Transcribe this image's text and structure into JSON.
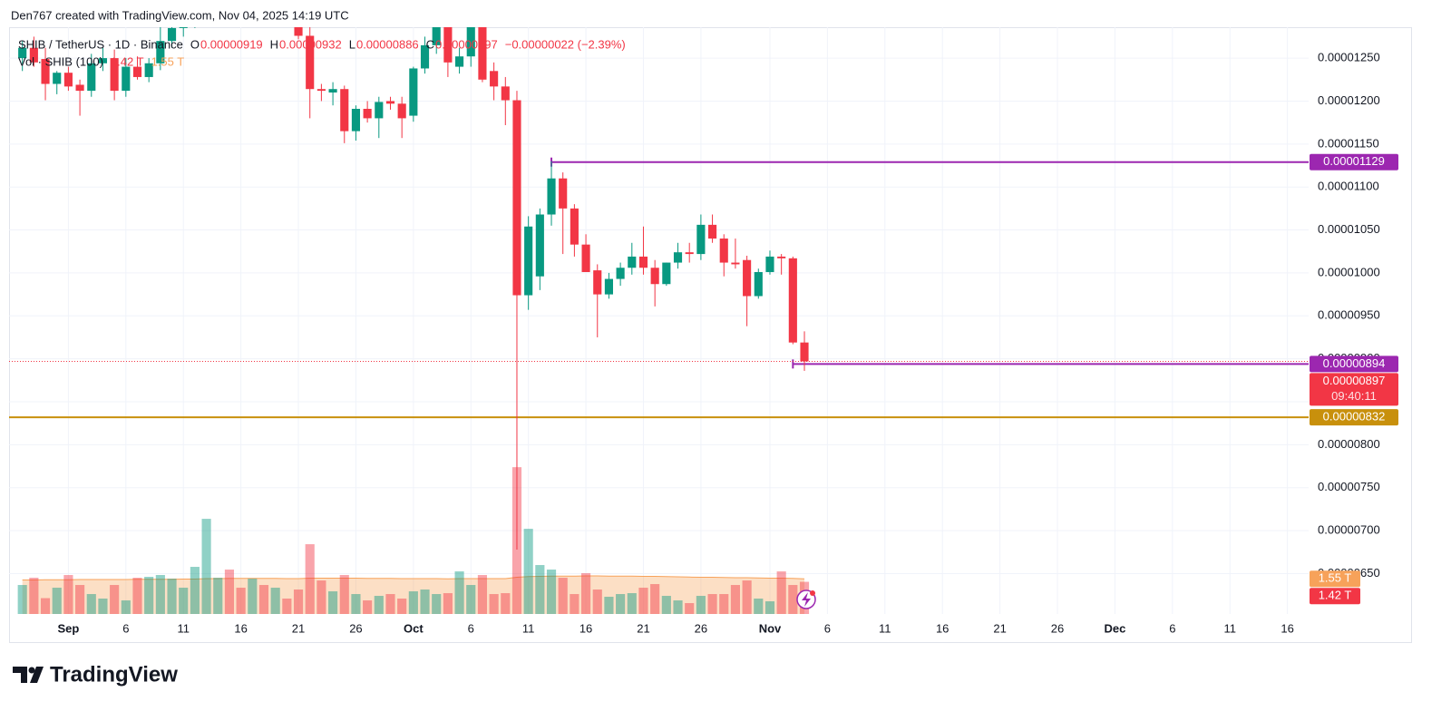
{
  "header": {
    "attribution": "Den767 created with TradingView.com, Nov 04, 2025 14:19 UTC"
  },
  "footer": {
    "logo": "TradingView"
  },
  "chart_data": {
    "type": "candlestick",
    "title": "SHIB / TetherUS · 1D · Binance",
    "ohlc_legend": {
      "names": [
        "O",
        "H",
        "L",
        "C"
      ],
      "value_labels": [
        "0.00000919",
        "0.00000932",
        "0.00000886",
        "0.00000897"
      ],
      "change_label": "−0.00000022 (−2.39%)"
    },
    "up_color": "#089981",
    "down_color": "#f23645",
    "x": [
      "2025-08-28",
      "2025-08-29",
      "2025-08-30",
      "2025-08-31",
      "2025-09-01",
      "2025-09-02",
      "2025-09-03",
      "2025-09-04",
      "2025-09-05",
      "2025-09-06",
      "2025-09-07",
      "2025-09-08",
      "2025-09-09",
      "2025-09-10",
      "2025-09-11",
      "2025-09-12",
      "2025-09-13",
      "2025-09-14",
      "2025-09-15",
      "2025-09-16",
      "2025-09-17",
      "2025-09-18",
      "2025-09-19",
      "2025-09-20",
      "2025-09-21",
      "2025-09-22",
      "2025-09-23",
      "2025-09-24",
      "2025-09-25",
      "2025-09-26",
      "2025-09-27",
      "2025-09-28",
      "2025-09-29",
      "2025-09-30",
      "2025-10-01",
      "2025-10-02",
      "2025-10-03",
      "2025-10-04",
      "2025-10-05",
      "2025-10-06",
      "2025-10-07",
      "2025-10-08",
      "2025-10-09",
      "2025-10-10",
      "2025-10-11",
      "2025-10-12",
      "2025-10-13",
      "2025-10-14",
      "2025-10-15",
      "2025-10-16",
      "2025-10-17",
      "2025-10-18",
      "2025-10-19",
      "2025-10-20",
      "2025-10-21",
      "2025-10-22",
      "2025-10-23",
      "2025-10-24",
      "2025-10-25",
      "2025-10-26",
      "2025-10-27",
      "2025-10-28",
      "2025-10-29",
      "2025-10-30",
      "2025-10-31",
      "2025-11-01",
      "2025-11-02",
      "2025-11-03",
      "2025-11-04"
    ],
    "open": [
      1.25e-05,
      1.262e-05,
      1.249e-05,
      1.22e-05,
      1.233e-05,
      1.219e-05,
      1.212e-05,
      1.244e-05,
      1.25e-05,
      1.212e-05,
      1.24e-05,
      1.228e-05,
      1.244e-05,
      1.27e-05,
      1.285e-05,
      1.292e-05,
      1.302e-05,
      1.325e-05,
      1.34e-05,
      1.322e-05,
      1.3e-05,
      1.315e-05,
      1.308e-05,
      1.33e-05,
      1.29e-05,
      1.276e-05,
      1.214e-05,
      1.21e-05,
      1.214e-05,
      1.165e-05,
      1.191e-05,
      1.18e-05,
      1.2e-05,
      1.197e-05,
      1.183e-05,
      1.238e-05,
      1.265e-05,
      1.286e-05,
      1.24e-05,
      1.252e-05,
      1.3e-05,
      1.235e-05,
      1.217e-05,
      1.201e-05,
      9.74e-06,
      9.96e-06,
      1.068e-05,
      1.11e-05,
      1.075e-05,
      1.033e-05,
      1.003e-05,
      9.75e-06,
      9.93e-06,
      1.006e-05,
      1.019e-05,
      1.006e-05,
      9.87e-06,
      1.012e-05,
      1.024e-05,
      1.022e-05,
      1.056e-05,
      1.04e-05,
      1.012e-05,
      1.015e-05,
      9.73e-06,
      1.001e-05,
      1.019e-05,
      1.017e-05,
      9.19e-06
    ],
    "high": [
      1.27e-05,
      1.275e-05,
      1.262e-05,
      1.235e-05,
      1.24e-05,
      1.225e-05,
      1.255e-05,
      1.262e-05,
      1.26e-05,
      1.25e-05,
      1.252e-05,
      1.25e-05,
      1.29e-05,
      1.295e-05,
      1.3e-05,
      1.31e-05,
      1.33e-05,
      1.35e-05,
      1.345e-05,
      1.33e-05,
      1.32e-05,
      1.325e-05,
      1.34e-05,
      1.335e-05,
      1.3e-05,
      1.29e-05,
      1.22e-05,
      1.222e-05,
      1.218e-05,
      1.195e-05,
      1.2e-05,
      1.205e-05,
      1.205e-05,
      1.205e-05,
      1.24e-05,
      1.275e-05,
      1.3e-05,
      1.3e-05,
      1.262e-05,
      1.3e-05,
      1.31e-05,
      1.245e-05,
      1.228e-05,
      1.212e-05,
      1.066e-05,
      1.075e-05,
      1.13e-05,
      1.117e-05,
      1.08e-05,
      1.045e-05,
      1.01e-05,
      1e-05,
      1.012e-05,
      1.035e-05,
      1.054e-05,
      1.015e-05,
      1.012e-05,
      1.035e-05,
      1.035e-05,
      1.068e-05,
      1.068e-05,
      1.045e-05,
      1.04e-05,
      1.02e-05,
      1.005e-05,
      1.026e-05,
      1.022e-05,
      1.019e-05,
      9.32e-06
    ],
    "low": [
      1.235e-05,
      1.24e-05,
      1.201e-05,
      1.208e-05,
      1.212e-05,
      1.183e-05,
      1.205e-05,
      1.235e-05,
      1.201e-05,
      1.205e-05,
      1.225e-05,
      1.222e-05,
      1.236e-05,
      1.262e-05,
      1.275e-05,
      1.285e-05,
      1.295e-05,
      1.31e-05,
      1.315e-05,
      1.295e-05,
      1.292e-05,
      1.3e-05,
      1.302e-05,
      1.3e-05,
      1.272e-05,
      1.18e-05,
      1.2e-05,
      1.195e-05,
      1.151e-05,
      1.154e-05,
      1.175e-05,
      1.157e-05,
      1.19e-05,
      1.157e-05,
      1.176e-05,
      1.232e-05,
      1.255e-05,
      1.228e-05,
      1.232e-05,
      1.24e-05,
      1.222e-05,
      1.201e-05,
      1.172e-05,
      6.78e-06,
      9.57e-06,
      9.8e-06,
      1.055e-05,
      1.022e-05,
      1.019e-05,
      1.001e-05,
      9.25e-06,
      9.7e-06,
      9.85e-06,
      9.98e-06,
      9.98e-06,
      9.61e-06,
      9.85e-06,
      1.005e-05,
      1.012e-05,
      1.015e-05,
      1.035e-05,
      9.96e-06,
      1.005e-05,
      9.38e-06,
      9.7e-06,
      9.98e-06,
      9.98e-06,
      9.17e-06,
      8.86e-06
    ],
    "close": [
      1.262e-05,
      1.245e-05,
      1.22e-05,
      1.233e-05,
      1.217e-05,
      1.212e-05,
      1.244e-05,
      1.25e-05,
      1.212e-05,
      1.24e-05,
      1.228e-05,
      1.244e-05,
      1.27e-05,
      1.285e-05,
      1.292e-05,
      1.302e-05,
      1.325e-05,
      1.34e-05,
      1.322e-05,
      1.3e-05,
      1.315e-05,
      1.308e-05,
      1.33e-05,
      1.305e-05,
      1.276e-05,
      1.214e-05,
      1.212e-05,
      1.214e-05,
      1.165e-05,
      1.191e-05,
      1.18e-05,
      1.199e-05,
      1.197e-05,
      1.18e-05,
      1.238e-05,
      1.265e-05,
      1.286e-05,
      1.245e-05,
      1.252e-05,
      1.29e-05,
      1.225e-05,
      1.217e-05,
      1.201e-05,
      9.74e-06,
      1.054e-05,
      1.068e-05,
      1.11e-05,
      1.075e-05,
      1.033e-05,
      1.001e-05,
      9.75e-06,
      9.93e-06,
      1.006e-05,
      1.019e-05,
      1.006e-05,
      9.87e-06,
      1.012e-05,
      1.024e-05,
      1.022e-05,
      1.056e-05,
      1.04e-05,
      1.012e-05,
      1.01e-05,
      9.73e-06,
      1.001e-05,
      1.019e-05,
      1.017e-05,
      9.19e-06,
      8.97e-06
    ],
    "xlim": [
      "2025-08-27",
      "2025-12-18"
    ],
    "xticks": [
      {
        "value": "2025-09-01",
        "label": "Sep"
      },
      {
        "value": "2025-09-06",
        "label": "6"
      },
      {
        "value": "2025-09-11",
        "label": "11"
      },
      {
        "value": "2025-09-16",
        "label": "16"
      },
      {
        "value": "2025-09-21",
        "label": "21"
      },
      {
        "value": "2025-09-26",
        "label": "26"
      },
      {
        "value": "2025-10-01",
        "label": "Oct"
      },
      {
        "value": "2025-10-06",
        "label": "6"
      },
      {
        "value": "2025-10-11",
        "label": "11"
      },
      {
        "value": "2025-10-16",
        "label": "16"
      },
      {
        "value": "2025-10-21",
        "label": "21"
      },
      {
        "value": "2025-10-26",
        "label": "26"
      },
      {
        "value": "2025-11-01",
        "label": "Nov"
      },
      {
        "value": "2025-11-06",
        "label": "6"
      },
      {
        "value": "2025-11-11",
        "label": "11"
      },
      {
        "value": "2025-11-16",
        "label": "16"
      },
      {
        "value": "2025-11-21",
        "label": "21"
      },
      {
        "value": "2025-11-26",
        "label": "26"
      },
      {
        "value": "2025-12-01",
        "label": "Dec"
      },
      {
        "value": "2025-12-06",
        "label": "6"
      },
      {
        "value": "2025-12-11",
        "label": "11"
      },
      {
        "value": "2025-12-16",
        "label": "16"
      }
    ],
    "ylim": [
      6.03e-06,
      1.286e-05
    ],
    "yticks": [
      {
        "value": 6.5e-06,
        "label": "0.00000650"
      },
      {
        "value": 7e-06,
        "label": "0.00000700"
      },
      {
        "value": 7.5e-06,
        "label": "0.00000750"
      },
      {
        "value": 8e-06,
        "label": "0.00000800"
      },
      {
        "value": 8.5e-06,
        "label": "0.00000850"
      },
      {
        "value": 9e-06,
        "label": "0.00000900"
      },
      {
        "value": 9.5e-06,
        "label": "0.00000950"
      },
      {
        "value": 1e-05,
        "label": "0.00001000"
      },
      {
        "value": 1.05e-05,
        "label": "0.00001050"
      },
      {
        "value": 1.1e-05,
        "label": "0.00001100"
      },
      {
        "value": 1.15e-05,
        "label": "0.00001150"
      },
      {
        "value": 1.2e-05,
        "label": "0.00001200"
      },
      {
        "value": 1.25e-05,
        "label": "0.00001250"
      }
    ],
    "grid": true,
    "last_price": {
      "value": 8.97e-06,
      "label": "0.00000897",
      "countdown": "09:40:11",
      "color": "#f23645"
    },
    "levels": [
      {
        "value": 1.129e-05,
        "label": "0.00001129",
        "color": "#9c27b0",
        "start": "2025-10-13"
      },
      {
        "value": 8.94e-06,
        "label": "0.00000894",
        "color": "#9c27b0",
        "start": "2025-11-03"
      },
      {
        "value": 8.32e-06,
        "label": "0.00000832",
        "color": "#c8900c"
      }
    ],
    "volume": {
      "name": "Vol · SHIB (100)",
      "ylim": [
        0,
        25.9
      ],
      "values": [
        1.28,
        1.6,
        0.7,
        1.16,
        1.72,
        1.28,
        0.88,
        0.68,
        1.28,
        0.6,
        1.6,
        1.64,
        1.72,
        1.56,
        1.16,
        2.08,
        4.2,
        1.6,
        1.96,
        1.16,
        1.56,
        1.28,
        1.16,
        0.68,
        1.08,
        3.08,
        1.48,
        1.0,
        1.72,
        0.88,
        0.6,
        0.8,
        0.88,
        0.68,
        1.0,
        1.08,
        0.88,
        0.92,
        1.88,
        1.28,
        1.72,
        0.88,
        0.92,
        6.48,
        3.76,
        2.16,
        1.96,
        1.6,
        0.88,
        1.8,
        1.08,
        0.76,
        0.88,
        0.92,
        1.16,
        1.32,
        0.8,
        0.6,
        0.48,
        0.8,
        0.88,
        0.88,
        1.28,
        1.48,
        0.68,
        0.56,
        1.88,
        1.28,
        1.42
      ],
      "value_label": "1.42 T",
      "ma_values": [
        1.5,
        1.5,
        1.51,
        1.51,
        1.51,
        1.52,
        1.52,
        1.52,
        1.52,
        1.52,
        1.53,
        1.53,
        1.53,
        1.53,
        1.54,
        1.54,
        1.56,
        1.56,
        1.57,
        1.57,
        1.57,
        1.57,
        1.57,
        1.56,
        1.56,
        1.58,
        1.58,
        1.58,
        1.58,
        1.58,
        1.57,
        1.57,
        1.57,
        1.56,
        1.56,
        1.56,
        1.56,
        1.55,
        1.56,
        1.56,
        1.56,
        1.56,
        1.56,
        1.62,
        1.65,
        1.66,
        1.67,
        1.67,
        1.67,
        1.68,
        1.68,
        1.67,
        1.67,
        1.67,
        1.66,
        1.66,
        1.65,
        1.64,
        1.63,
        1.62,
        1.62,
        1.61,
        1.6,
        1.6,
        1.59,
        1.58,
        1.58,
        1.57,
        1.55
      ],
      "ma_label": "1.55 T",
      "ma_color": "#f7a25a"
    }
  }
}
